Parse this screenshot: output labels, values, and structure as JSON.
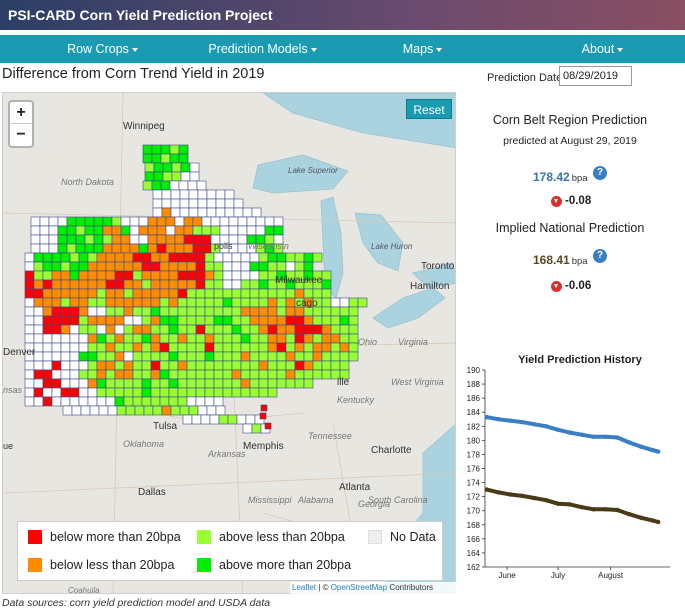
{
  "app": {
    "title": "PSI-CARD Corn Yield Prediction Project"
  },
  "nav": {
    "items": [
      {
        "label": "Row Crops"
      },
      {
        "label": "Prediction Models"
      },
      {
        "label": "Maps"
      },
      {
        "label": "About"
      }
    ]
  },
  "page": {
    "title": "Difference from Corn Trend Yield in 2019"
  },
  "map": {
    "zoom_in": "+",
    "zoom_out": "−",
    "reset_label": "Reset",
    "places": [
      "Winnipeg",
      "North Dakota",
      "Lake Superior",
      "Wisconsin",
      "polis",
      "Lake Huron",
      "Toronto",
      "Milwaukee",
      "Hamilton",
      "cago",
      "Denver",
      "ille",
      "West Virginia",
      "Kentucky",
      "Tulsa",
      "Oklahoma",
      "Tennessee",
      "Memphis",
      "Arkansas",
      "Charlotte",
      "Dallas",
      "South Carolina",
      "Mississippi",
      "Alabama",
      "Atlanta",
      "Georgia",
      "Coahuila",
      "Virginia",
      "Ohio",
      "nsas",
      "ue"
    ],
    "legend": {
      "below_more": "below more than 20bpa",
      "below_less": "below less than 20bpa",
      "above_less": "above less than 20bpa",
      "above_more": "above more than 20bpa",
      "no_data": "No Data"
    },
    "legend_colors": {
      "below_more": "#ff0000",
      "below_less": "#ff8c00",
      "above_less": "#99ff33",
      "above_more": "#00ee00",
      "no_data": "#eeeeee"
    },
    "attribution": {
      "leaflet": "Leaflet",
      "sep": "| ©",
      "osm": "OpenStreetMap",
      "contrib": "Contributors"
    }
  },
  "footer": {
    "data_sources": "Data sources: corn yield prediction model and USDA data"
  },
  "sidebar": {
    "prediction_date_label": "Prediction Date:",
    "prediction_date_value": "08/29/2019",
    "corn_belt": {
      "title": "Corn Belt Region Prediction",
      "subtitle": "predicted at August 29, 2019",
      "value": "178.42",
      "unit": "bpa",
      "delta": "-0.08"
    },
    "national": {
      "title": "Implied National Prediction",
      "value": "168.41",
      "unit": "bpa",
      "delta": "-0.06"
    },
    "colors": {
      "corn_belt_value": "#3a74b0",
      "national_value": "#5b4a1e"
    }
  },
  "chart_data": {
    "type": "line",
    "title": "Yield Prediction History",
    "xlabel": "",
    "ylabel": "",
    "ylim": [
      162,
      190
    ],
    "yticks": [
      162,
      164,
      166,
      168,
      170,
      172,
      174,
      176,
      178,
      180,
      182,
      184,
      186,
      188,
      190
    ],
    "xtick_labels": [
      {
        "label": "June",
        "x": "2019-06-01"
      },
      {
        "label": "July",
        "x": "2019-07-01"
      },
      {
        "label": "August",
        "x": "2019-08-01"
      }
    ],
    "xlim": [
      "2019-05-19",
      "2019-09-05"
    ],
    "grid": false,
    "series": [
      {
        "color": "#3a7fc4",
        "x": [
          "2019-05-20",
          "2019-05-27",
          "2019-06-03",
          "2019-06-10",
          "2019-06-17",
          "2019-06-24",
          "2019-07-01",
          "2019-07-08",
          "2019-07-15",
          "2019-07-22",
          "2019-07-29",
          "2019-08-05",
          "2019-08-12",
          "2019-08-19",
          "2019-08-26",
          "2019-08-29"
        ],
        "values": [
          183.3,
          183.0,
          182.8,
          182.6,
          182.3,
          182.0,
          181.5,
          181.1,
          180.8,
          180.5,
          180.5,
          180.4,
          179.7,
          179.1,
          178.6,
          178.4
        ]
      },
      {
        "color": "#4a3b16",
        "x": [
          "2019-05-20",
          "2019-05-27",
          "2019-06-03",
          "2019-06-10",
          "2019-06-17",
          "2019-06-24",
          "2019-07-01",
          "2019-07-08",
          "2019-07-15",
          "2019-07-22",
          "2019-07-29",
          "2019-08-05",
          "2019-08-12",
          "2019-08-19",
          "2019-08-26",
          "2019-08-29"
        ],
        "values": [
          173.0,
          172.6,
          172.3,
          172.1,
          171.8,
          171.5,
          171.0,
          170.9,
          170.5,
          170.2,
          170.2,
          170.1,
          169.5,
          169.0,
          168.6,
          168.4
        ]
      }
    ]
  }
}
